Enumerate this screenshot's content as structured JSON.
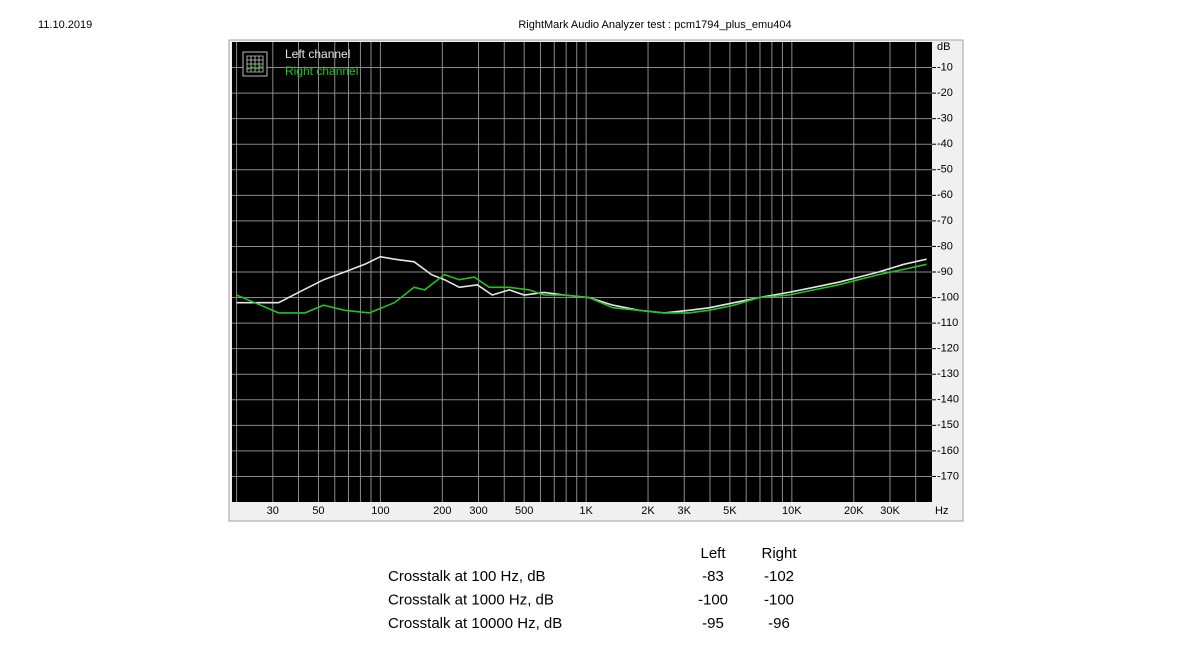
{
  "date": "11.10.2019",
  "chart_data": {
    "type": "line",
    "title": "RightMark Audio Analyzer test : pcm1794_plus_emu404",
    "y_unit": "dB",
    "x_unit": "Hz",
    "xscale": "log",
    "grid": true,
    "xlim": [
      19,
      48000
    ],
    "ylim": [
      -180,
      0
    ],
    "xticks": [
      30,
      50,
      100,
      200,
      300,
      500,
      {
        "value": 1000,
        "label": "1K"
      },
      {
        "value": 2000,
        "label": "2K"
      },
      {
        "value": 3000,
        "label": "3K"
      },
      {
        "value": 5000,
        "label": "5K"
      },
      {
        "value": 10000,
        "label": "10K"
      },
      {
        "value": 20000,
        "label": "20K"
      },
      {
        "value": 30000,
        "label": "30K"
      }
    ],
    "xminor": [
      20,
      40,
      60,
      70,
      80,
      90,
      400,
      600,
      700,
      800,
      900,
      4000,
      6000,
      7000,
      8000,
      9000,
      40000
    ],
    "yticks": [
      -10,
      -20,
      -30,
      -40,
      -50,
      -60,
      -70,
      -80,
      -90,
      -100,
      -110,
      -120,
      -130,
      -140,
      -150,
      -160,
      -170
    ],
    "legend": "top-left",
    "series": [
      {
        "name": "Left channel",
        "color": "#e6e6e6",
        "x": [
          20,
          32,
          40,
          53,
          67,
          84,
          100,
          117,
          146,
          177,
          205,
          242,
          296,
          350,
          423,
          500,
          625,
          782,
          1035,
          1352,
          1808,
          2390,
          3160,
          3955,
          5230,
          6920,
          9670,
          12800,
          16900,
          21100,
          26400,
          35000,
          45200
        ],
        "values": [
          -102,
          -102,
          -98,
          -93,
          -90,
          -87,
          -84,
          -85,
          -86,
          -91,
          -93,
          -96,
          -95,
          -99,
          -97,
          -99,
          -98,
          -99,
          -100,
          -103,
          -105,
          -106,
          -105,
          -104,
          -102,
          -100,
          -98,
          -96,
          -94,
          -92,
          -90,
          -87,
          -85
        ]
      },
      {
        "name": "Right channel",
        "color": "#22c322",
        "x": [
          20,
          24.5,
          32,
          43,
          53,
          67,
          88.5,
          117,
          146,
          164,
          205,
          242,
          286,
          338,
          423,
          529,
          625,
          782,
          1035,
          1352,
          1808,
          2390,
          3160,
          3955,
          5230,
          6920,
          9670,
          12800,
          16900,
          21100,
          26400,
          35000,
          45200
        ],
        "values": [
          -99,
          -102,
          -106,
          -106,
          -103,
          -105,
          -106,
          -102,
          -96,
          -97,
          -91,
          -93,
          -92,
          -96,
          -96,
          -97,
          -99,
          -99,
          -100,
          -104,
          -105,
          -106,
          -106,
          -105,
          -103,
          -100,
          -99,
          -97,
          -95,
          -93,
          -91,
          -89,
          -87
        ]
      }
    ]
  },
  "table": {
    "headers": [
      "Left",
      "Right"
    ],
    "rows": [
      [
        "Crosstalk at 100 Hz, dB",
        -83,
        -102
      ],
      [
        "Crosstalk at 1000 Hz, dB",
        -100,
        -100
      ],
      [
        "Crosstalk at 10000 Hz, dB",
        -95,
        -96
      ]
    ]
  }
}
